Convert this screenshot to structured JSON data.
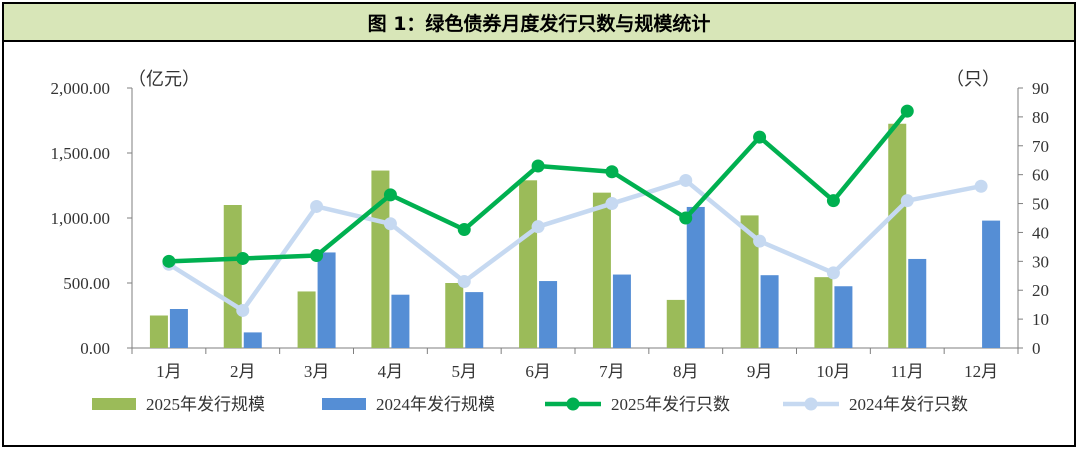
{
  "chart_data": {
    "type": "bar+line",
    "title": "图 1：绿色债券月度发行只数与规模统计",
    "categories": [
      "1月",
      "2月",
      "3月",
      "4月",
      "5月",
      "6月",
      "7月",
      "8月",
      "9月",
      "10月",
      "11月",
      "12月"
    ],
    "left_axis": {
      "unit_label": "（亿元）",
      "min": 0,
      "max": 2000,
      "ticks": [
        "0.00",
        "500.00",
        "1,000.00",
        "1,500.00",
        "2,000.00"
      ],
      "tick_values": [
        0,
        500,
        1000,
        1500,
        2000
      ]
    },
    "right_axis": {
      "unit_label": "（只）",
      "min": 0,
      "max": 90,
      "ticks": [
        "0",
        "10",
        "20",
        "30",
        "40",
        "50",
        "60",
        "70",
        "80",
        "90"
      ],
      "tick_values": [
        0,
        10,
        20,
        30,
        40,
        50,
        60,
        70,
        80,
        90
      ]
    },
    "series": [
      {
        "name": "2025年发行规模",
        "type": "bar",
        "axis": "left",
        "color": "#9bbb59",
        "values": [
          250,
          1100,
          435,
          1365,
          500,
          1290,
          1195,
          370,
          1020,
          545,
          1725,
          null
        ]
      },
      {
        "name": "2024年发行规模",
        "type": "bar",
        "axis": "left",
        "color": "#558ed5",
        "values": [
          300,
          120,
          735,
          410,
          430,
          515,
          565,
          1085,
          560,
          475,
          685,
          980
        ]
      },
      {
        "name": "2025年发行只数",
        "type": "line",
        "axis": "right",
        "color": "#00b050",
        "values": [
          30,
          31,
          32,
          53,
          41,
          63,
          61,
          45,
          73,
          51,
          82,
          null
        ]
      },
      {
        "name": "2024年发行只数",
        "type": "line",
        "axis": "right",
        "color": "#c6d9f1",
        "values": [
          29,
          13,
          49,
          43,
          23,
          42,
          50,
          58,
          37,
          26,
          51,
          56
        ]
      }
    ]
  }
}
